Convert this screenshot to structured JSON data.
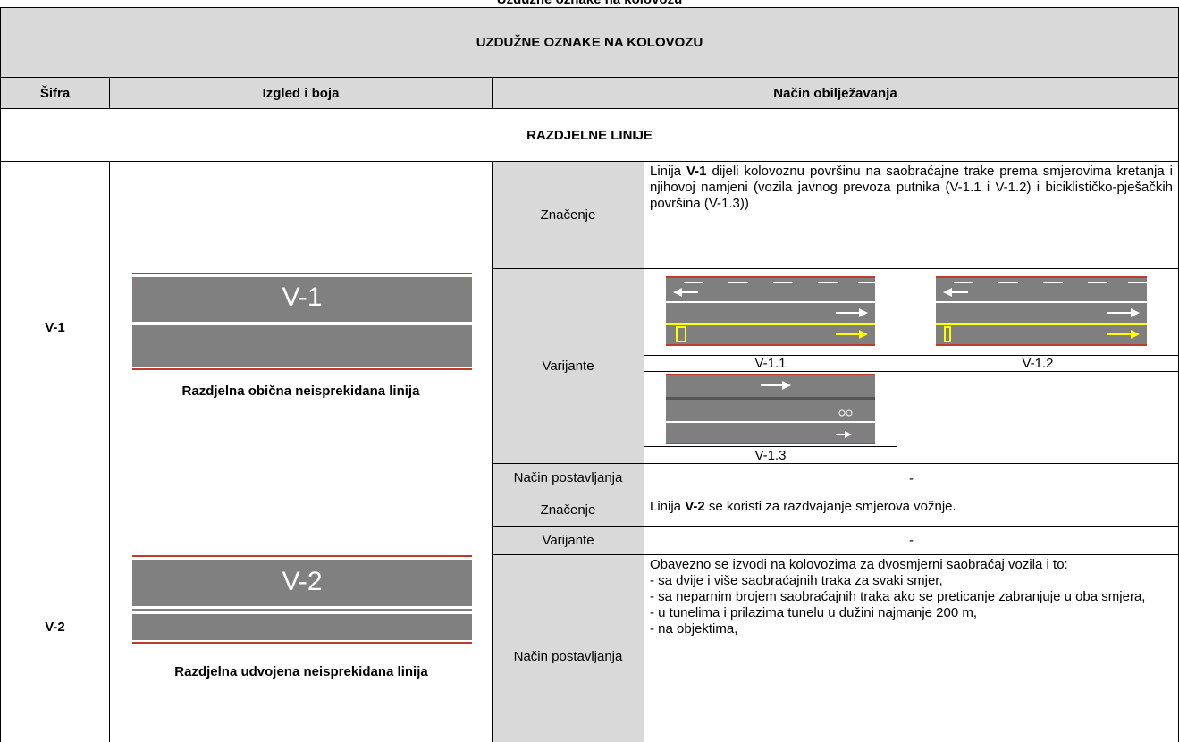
{
  "header": {
    "page_title": "Uzdužne oznake na kolovozu"
  },
  "table": {
    "title": "UZDUŽNE OZNAKE NA KOLOVOZU",
    "columns": [
      "Šifra",
      "Izgled i boja",
      "Način obilježavanja"
    ],
    "section": "RAZDJELNE LINIJE",
    "row_labels": [
      "Značenje",
      "Varijante",
      "Način postavljanja"
    ],
    "rows": [
      {
        "code": "V-1",
        "image_label": "V-1",
        "caption": "Razdjelna obična neisprekidana linija",
        "meaning": {
          "before": "Linija",
          "code": "V-1",
          "after": "dijeli kolovoznu površinu na saobraćajne trake prema smjerovima kretanja i njihovoj namjeni (vozila javnog prevoza putnika (V-1.1 i V-1.2) i biciklističko-pješačkih površina (V-1.3))"
        },
        "variants": [
          "V-1.1",
          "V-1.2",
          "V-1.3"
        ],
        "placement": "-"
      },
      {
        "code": "V-2",
        "image_label": "V-2",
        "caption": "Razdjelna udvojena neisprekidana linija",
        "meaning": {
          "before": "Linija",
          "code": "V-2",
          "after": "se koristi za razdvajanje smjerova vožnje."
        },
        "variants_text": "-",
        "placement_lines": [
          "Obavezno se izvodi na kolovozima za dvosmjerni saobraćaj vozila i to:",
          "- sa dvije i više saobraćajnih traka za svaki smjer,",
          "- sa neparnim brojem saobraćajnih traka ako se preticanje zabranjuje u oba smjera,",
          "- u tunelima i prilazima tunelu u dužini najmanje 200 m,",
          "- na objektima,"
        ]
      }
    ]
  }
}
